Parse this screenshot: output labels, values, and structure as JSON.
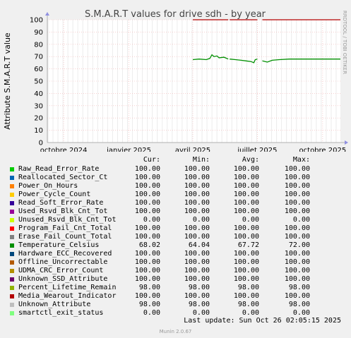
{
  "title": "S.M.A.R.T values for drive sdh - by year",
  "side_text": "RRDTOOL / TOBI OETIKER",
  "footer": {
    "last_update": "Last update: Sun Oct 26 02:05:15 2025",
    "version": "Munin 2.0.67"
  },
  "legend": {
    "headers": [
      "Cur:",
      "Min:",
      "Avg:",
      "Max:"
    ],
    "items": [
      {
        "name": "Raw_Read_Error_Rate",
        "color": "#00cc00",
        "cur": "100.00",
        "min": "100.00",
        "avg": "100.00",
        "max": "100.00"
      },
      {
        "name": "Reallocated_Sector_Ct",
        "color": "#0066b3",
        "cur": "100.00",
        "min": "100.00",
        "avg": "100.00",
        "max": "100.00"
      },
      {
        "name": "Power_On_Hours",
        "color": "#ff8000",
        "cur": "100.00",
        "min": "100.00",
        "avg": "100.00",
        "max": "100.00"
      },
      {
        "name": "Power_Cycle_Count",
        "color": "#ffcc00",
        "cur": "100.00",
        "min": "100.00",
        "avg": "100.00",
        "max": "100.00"
      },
      {
        "name": "Read_Soft_Error_Rate",
        "color": "#330099",
        "cur": "100.00",
        "min": "100.00",
        "avg": "100.00",
        "max": "100.00"
      },
      {
        "name": "Used_Rsvd_Blk_Cnt_Tot",
        "color": "#990099",
        "cur": "100.00",
        "min": "100.00",
        "avg": "100.00",
        "max": "100.00"
      },
      {
        "name": "Unused_Rsvd_Blk_Cnt_Tot",
        "color": "#ccff00",
        "cur": "0.00",
        "min": "0.00",
        "avg": "0.00",
        "max": "0.00"
      },
      {
        "name": "Program_Fail_Cnt_Total",
        "color": "#ff0000",
        "cur": "100.00",
        "min": "100.00",
        "avg": "100.00",
        "max": "100.00"
      },
      {
        "name": "Erase_Fail_Count_Total",
        "color": "#808080",
        "cur": "100.00",
        "min": "100.00",
        "avg": "100.00",
        "max": "100.00"
      },
      {
        "name": "Temperature_Celsius",
        "color": "#008f00",
        "cur": "68.02",
        "min": "64.04",
        "avg": "67.72",
        "max": "72.00"
      },
      {
        "name": "Hardware_ECC_Recovered",
        "color": "#00487d",
        "cur": "100.00",
        "min": "100.00",
        "avg": "100.00",
        "max": "100.00"
      },
      {
        "name": "Offline_Uncorrectable",
        "color": "#b35a00",
        "cur": "100.00",
        "min": "100.00",
        "avg": "100.00",
        "max": "100.00"
      },
      {
        "name": "UDMA_CRC_Error_Count",
        "color": "#b38f00",
        "cur": "100.00",
        "min": "100.00",
        "avg": "100.00",
        "max": "100.00"
      },
      {
        "name": "Unknown_SSD_Attribute",
        "color": "#6b006b",
        "cur": "100.00",
        "min": "100.00",
        "avg": "100.00",
        "max": "100.00"
      },
      {
        "name": "Percent_Lifetime_Remain",
        "color": "#8fb300",
        "cur": "98.00",
        "min": "98.00",
        "avg": "98.00",
        "max": "98.00"
      },
      {
        "name": "Media_Wearout_Indicator",
        "color": "#b30000",
        "cur": "100.00",
        "min": "100.00",
        "avg": "100.00",
        "max": "100.00"
      },
      {
        "name": "Unknown_Attribute",
        "color": "#bebebe",
        "cur": "98.00",
        "min": "98.00",
        "avg": "98.00",
        "max": "98.00"
      },
      {
        "name": "smartctl_exit_status",
        "color": "#80ff80",
        "cur": "0.00",
        "min": "0.00",
        "avg": "0.00",
        "max": "0.00"
      }
    ]
  },
  "chart_data": {
    "type": "line",
    "title": "S.M.A.R.T values for drive sdh - by year",
    "ylabel": "Attribute S.M.A.R.T value",
    "xlabel": "",
    "ylim": [
      0,
      100
    ],
    "xlim": [
      "2024-09-08",
      "2025-10-26"
    ],
    "yticks": [
      0,
      10,
      20,
      30,
      40,
      50,
      60,
      70,
      80,
      90,
      100
    ],
    "xticks": [
      {
        "date": "2024-10-01",
        "label": "octobre 2024"
      },
      {
        "date": "2025-01-01",
        "label": "janvier 2025"
      },
      {
        "date": "2025-04-01",
        "label": "avril 2025"
      },
      {
        "date": "2025-07-01",
        "label": "juillet 2025"
      },
      {
        "date": "2025-10-01",
        "label": "octobre 2025"
      }
    ],
    "grid": true,
    "series": [
      {
        "name": "Media_Wearout_Indicator",
        "color": "#b30000",
        "segments": [
          [
            [
              "2025-04-01",
              100
            ],
            [
              "2025-05-21",
              100
            ]
          ],
          [
            [
              "2025-05-23",
              100
            ],
            [
              "2025-07-01",
              100
            ]
          ],
          [
            [
              "2025-07-08",
              100
            ],
            [
              "2025-10-26",
              100
            ]
          ]
        ]
      },
      {
        "name": "Temperature_Celsius",
        "color": "#008f00",
        "segments": [
          [
            [
              "2025-04-01",
              67.5
            ],
            [
              "2025-04-10",
              68
            ],
            [
              "2025-04-20",
              67.5
            ],
            [
              "2025-04-25",
              68.5
            ],
            [
              "2025-04-28",
              71.5
            ],
            [
              "2025-05-01",
              70
            ],
            [
              "2025-05-05",
              70.5
            ],
            [
              "2025-05-08",
              69
            ],
            [
              "2025-05-15",
              69.5
            ],
            [
              "2025-05-21",
              68
            ]
          ],
          [
            [
              "2025-05-23",
              68
            ],
            [
              "2025-05-31",
              67.5
            ],
            [
              "2025-06-08",
              67
            ],
            [
              "2025-06-15",
              66.5
            ],
            [
              "2025-06-22",
              66
            ],
            [
              "2025-06-26",
              65
            ],
            [
              "2025-06-28",
              67.5
            ],
            [
              "2025-07-01",
              68
            ]
          ],
          [
            [
              "2025-07-08",
              66.5
            ],
            [
              "2025-07-15",
              65.5
            ],
            [
              "2025-07-22",
              67
            ],
            [
              "2025-08-01",
              67.5
            ],
            [
              "2025-08-15",
              68
            ],
            [
              "2025-09-01",
              68
            ],
            [
              "2025-10-01",
              68
            ],
            [
              "2025-10-26",
              68
            ]
          ]
        ]
      }
    ]
  }
}
